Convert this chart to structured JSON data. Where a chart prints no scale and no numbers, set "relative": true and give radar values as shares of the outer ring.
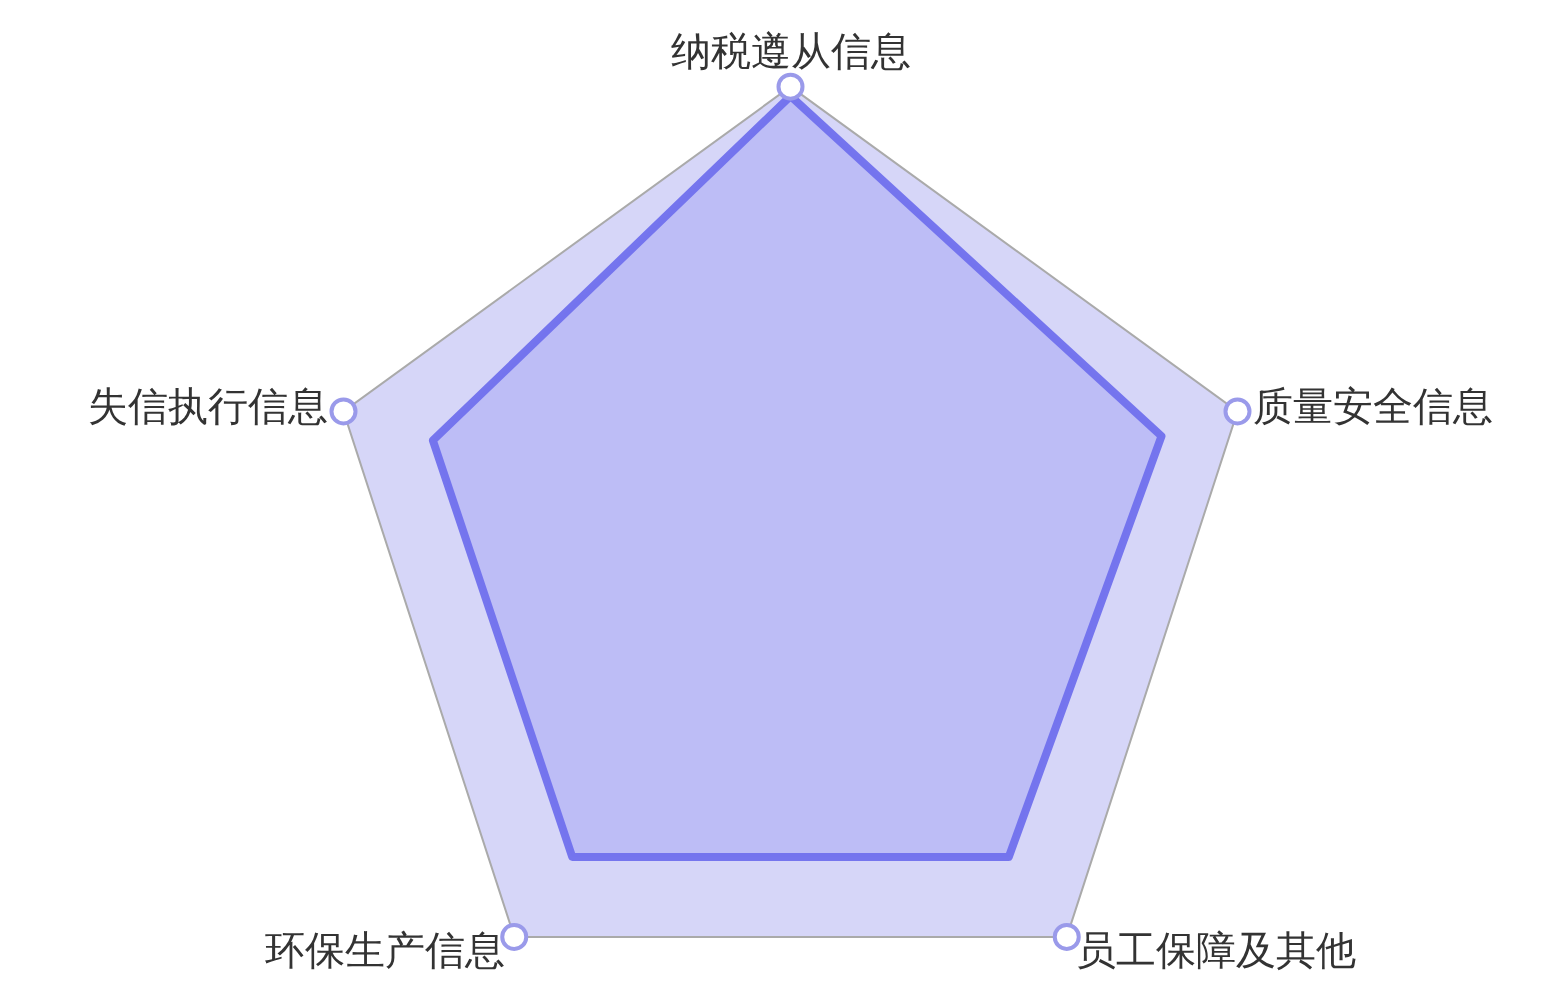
{
  "chart_data": {
    "type": "radar",
    "relative": true,
    "categories": [
      "纳税遵从信息",
      "质量安全信息",
      "员工保障及其他",
      "环保生产信息",
      "失信执行信息"
    ],
    "series": [
      {
        "color": "#7575ee",
        "values": [
          0.98,
          0.83,
          0.79,
          0.79,
          0.8
        ]
      }
    ]
  }
}
